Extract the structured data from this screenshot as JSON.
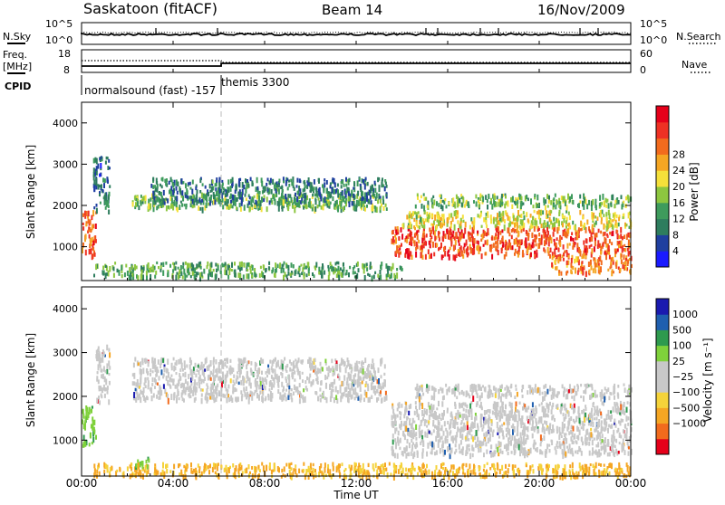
{
  "header": {
    "station": "Saskatoon (fitACF)",
    "beam": "Beam 14",
    "date": "16/Nov/2009"
  },
  "noise_panel": {
    "left_label": "N.Sky",
    "right_label": "N.Search",
    "left_ticks": [
      "10^5",
      "10^0"
    ],
    "right_ticks": [
      "10^5",
      "10^0"
    ]
  },
  "freq_panel": {
    "left_label_line1": "Freq.",
    "left_label_line2": "[MHz]",
    "left_ticks": [
      "18",
      "8"
    ],
    "right_label": "Nave",
    "right_ticks": [
      "60",
      "0"
    ]
  },
  "cpid": {
    "label": "CPID",
    "segments": [
      {
        "text": "normalsound (fast) -157",
        "start_hour": 0.0
      },
      {
        "text": "themis 3300",
        "start_hour": 6.1
      }
    ]
  },
  "x_axis": {
    "label": "Time UT",
    "ticks": [
      "00:00",
      "04:00",
      "08:00",
      "12:00",
      "16:00",
      "20:00",
      "00:00"
    ],
    "tick_hours": [
      0,
      4,
      8,
      12,
      16,
      20,
      24
    ],
    "range_hours": [
      0,
      24
    ]
  },
  "colors": {
    "power": [
      "#1a1aff",
      "#1f3f9f",
      "#2e7d5e",
      "#3e9b5c",
      "#8dc63f",
      "#f5e03a",
      "#f5a623",
      "#f26b1d",
      "#ee3124",
      "#e5001a"
    ],
    "velocity": [
      "#e5001a",
      "#f26b1d",
      "#f5a623",
      "#f5d33a",
      "#c8c8c8",
      "#c8c8c8",
      "#7fd13b",
      "#2e9a4e",
      "#1f5faf",
      "#1a1aaf"
    ],
    "grey_scatter": "#c8c8c8"
  },
  "chart_data": [
    {
      "type": "heatmap",
      "title": "Power",
      "xlabel": "Time UT",
      "ylabel": "Slant Range [km]",
      "ylim": [
        180,
        4500
      ],
      "y_ticks": [
        1000,
        2000,
        3000,
        4000
      ],
      "colorbar": {
        "label": "Power [dB]",
        "ticks": [
          4,
          8,
          12,
          16,
          20,
          24,
          28
        ],
        "range": [
          0,
          30
        ]
      },
      "regions": [
        {
          "x": [
            0.0,
            0.6
          ],
          "y": [
            800,
            1900
          ],
          "level": 24
        },
        {
          "x": [
            0.5,
            1.2
          ],
          "y": [
            1900,
            3200
          ],
          "level": 6
        },
        {
          "x": [
            2.2,
            13.3
          ],
          "y": [
            1950,
            2300
          ],
          "level": 12
        },
        {
          "x": [
            3.0,
            13.3
          ],
          "y": [
            2100,
            2700
          ],
          "level": 7
        },
        {
          "x": [
            13.5,
            24.0
          ],
          "y": [
            800,
            1500
          ],
          "level": 25
        },
        {
          "x": [
            14.0,
            24.0
          ],
          "y": [
            1500,
            1900
          ],
          "level": 16
        },
        {
          "x": [
            14.5,
            24.0
          ],
          "y": [
            2000,
            2300
          ],
          "level": 12
        },
        {
          "x": [
            0.5,
            14.0
          ],
          "y": [
            300,
            650
          ],
          "level": 10
        },
        {
          "x": [
            20.5,
            24.0
          ],
          "y": [
            400,
            800
          ],
          "level": 22
        }
      ]
    },
    {
      "type": "heatmap",
      "title": "Velocity",
      "xlabel": "Time UT",
      "ylabel": "Slant Range [km]",
      "ylim": [
        180,
        4500
      ],
      "y_ticks": [
        1000,
        2000,
        3000,
        4000
      ],
      "colorbar": {
        "label": "Velocity [m s⁻¹]",
        "ticks": [
          "1000",
          "500",
          "100",
          "25",
          "−25",
          "−100",
          "−500",
          "−1000"
        ]
      },
      "regions": [
        {
          "x": [
            0.0,
            0.6
          ],
          "y": [
            900,
            1800
          ],
          "level": 100
        },
        {
          "x": [
            0.6,
            1.2
          ],
          "y": [
            1900,
            3200
          ],
          "level": 0
        },
        {
          "x": [
            2.2,
            13.3
          ],
          "y": [
            1950,
            2900
          ],
          "level": 0
        },
        {
          "x": [
            13.5,
            24.0
          ],
          "y": [
            700,
            1900
          ],
          "level": 0
        },
        {
          "x": [
            14.5,
            24.0
          ],
          "y": [
            2000,
            2300
          ],
          "level": 0
        },
        {
          "x": [
            0.5,
            24.0
          ],
          "y": [
            200,
            500
          ],
          "level": -100
        },
        {
          "x": [
            2.3,
            3.0
          ],
          "y": [
            450,
            650
          ],
          "level": 100
        }
      ]
    }
  ]
}
